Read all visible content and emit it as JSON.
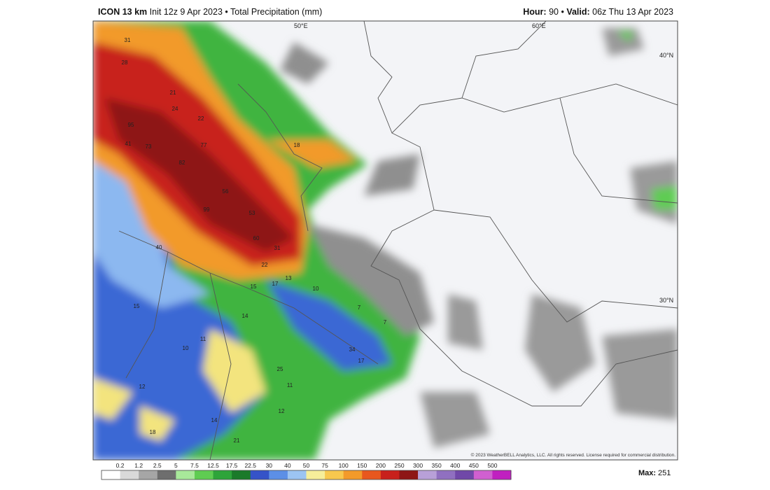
{
  "header": {
    "model": "ICON 13 km",
    "init": "Init 12z 9 Apr 2023",
    "separator": "•",
    "field": "Total Precipitation (mm)",
    "hour_label": "Hour:",
    "hour": "90",
    "separator2": "•",
    "valid_label": "Valid:",
    "valid": "06z Thu 13 Apr 2023"
  },
  "map": {
    "lon_labels": [
      "50°E",
      "60°E"
    ],
    "lat_labels": [
      "40°N",
      "30°N"
    ],
    "values": [
      "31",
      "28",
      "21",
      "24",
      "22",
      "95",
      "41",
      "73",
      "77",
      "18",
      "82",
      "56",
      "99",
      "53",
      "60",
      "31",
      "40",
      "22",
      "15",
      "17",
      "13",
      "10",
      "15",
      "14",
      "10",
      "11",
      "7",
      "7",
      "34",
      "17",
      "25",
      "12",
      "11",
      "12",
      "18",
      "14",
      "21"
    ],
    "credit": "© 2023 WeatherBELL Analytics, LLC. All rights reserved. License required for commercial distribution."
  },
  "legend": {
    "labels": [
      "0.2",
      "1.2",
      "2.5",
      "5",
      "7.5",
      "12.5",
      "17.5",
      "22.5",
      "30",
      "40",
      "50",
      "75",
      "100",
      "150",
      "200",
      "250",
      "300",
      "350",
      "400",
      "450",
      "500"
    ],
    "colors": [
      "#ffffff",
      "#d9d9d9",
      "#a6a6a6",
      "#6e6e6e",
      "#a8e89a",
      "#5fcc52",
      "#2ea43a",
      "#1b7a2a",
      "#3553c8",
      "#5c8fe6",
      "#9cc4f2",
      "#f6ee9a",
      "#f8c84e",
      "#f39a2a",
      "#e8571e",
      "#c8201c",
      "#8e1616",
      "#b8a0d8",
      "#9070c0",
      "#7048a8",
      "#d060d0",
      "#c020c0"
    ]
  },
  "max": {
    "label": "Max:",
    "value": "251"
  }
}
